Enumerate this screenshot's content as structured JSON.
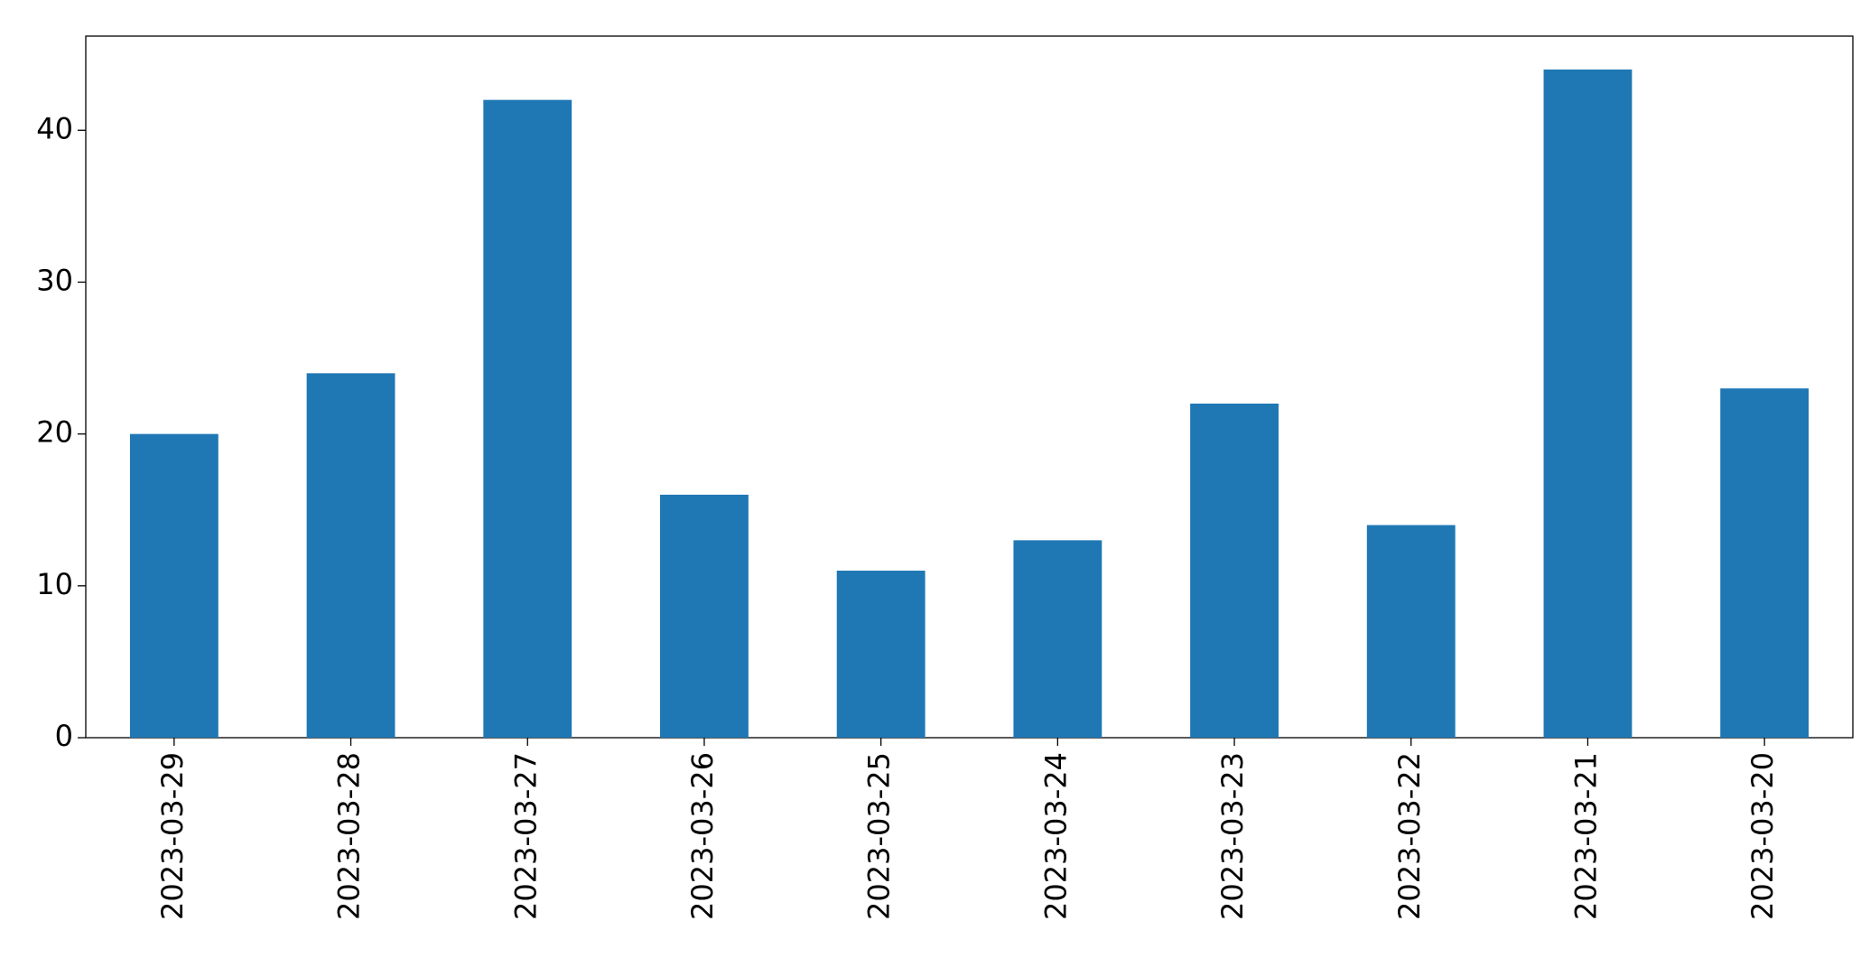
{
  "chart_data": {
    "type": "bar",
    "categories": [
      "2023-03-29",
      "2023-03-28",
      "2023-03-27",
      "2023-03-26",
      "2023-03-25",
      "2023-03-24",
      "2023-03-23",
      "2023-03-22",
      "2023-03-21",
      "2023-03-20"
    ],
    "values": [
      20,
      24,
      42,
      16,
      11,
      13,
      22,
      14,
      44,
      23
    ],
    "color": "#1f77b4",
    "ylim": [
      0,
      46.2
    ],
    "yticks": [
      0,
      10,
      20,
      30,
      40
    ],
    "grid": false
  }
}
